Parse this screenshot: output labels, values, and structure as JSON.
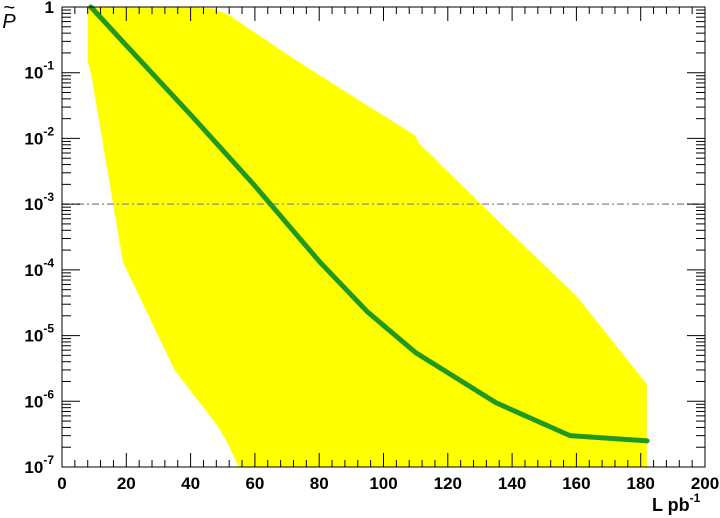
{
  "chart_data": {
    "type": "line",
    "xlabel": "L pb",
    "xlabel_superscript": "-1",
    "ylabel": "P",
    "ylabel_accent": "~",
    "xlim": [
      0,
      200
    ],
    "ylim": [
      1e-07,
      1
    ],
    "yscale": "log",
    "x_ticks": [
      0,
      20,
      40,
      60,
      80,
      100,
      120,
      140,
      160,
      180,
      200
    ],
    "x_tick_labels": [
      "0",
      "20",
      "40",
      "60",
      "80",
      "100",
      "120",
      "140",
      "160",
      "180",
      "200"
    ],
    "y_ticks": [
      {
        "value": 1,
        "base": "1",
        "exp": ""
      },
      {
        "value": 0.1,
        "base": "10",
        "exp": "-1"
      },
      {
        "value": 0.01,
        "base": "10",
        "exp": "-2"
      },
      {
        "value": 0.001,
        "base": "10",
        "exp": "-3"
      },
      {
        "value": 0.0001,
        "base": "10",
        "exp": "-4"
      },
      {
        "value": 1e-05,
        "base": "10",
        "exp": "-5"
      },
      {
        "value": 1e-06,
        "base": "10",
        "exp": "-6"
      },
      {
        "value": 1e-07,
        "base": "10",
        "exp": "-7"
      }
    ],
    "reference_line": {
      "y": 0.001,
      "style": "dash-dot",
      "color": "#9a9a9a"
    },
    "series": [
      {
        "color": "#1f9a1f",
        "x": [
          9,
          20,
          40,
          60,
          80,
          95,
          110,
          135,
          158,
          182
        ],
        "y": [
          1,
          0.26,
          0.023,
          0.0019,
          0.000135,
          2.3e-05,
          5.5e-06,
          9.5e-07,
          3e-07,
          2.5e-07
        ]
      }
    ],
    "band": {
      "color": "#ffff00",
      "upper": {
        "x": [
          8,
          25,
          40,
          47,
          52,
          70,
          90,
          110,
          111,
          135,
          160,
          182
        ],
        "y": [
          1,
          1,
          1,
          0.95,
          0.75,
          0.19,
          0.045,
          0.011,
          0.0085,
          0.0006,
          4e-05,
          1.8e-06
        ]
      },
      "lower": {
        "x": [
          8,
          9,
          19,
          35,
          48,
          51,
          55,
          182
        ],
        "y": [
          0.15,
          0.1,
          0.00013,
          3e-06,
          4.5e-07,
          2.6e-07,
          1e-07,
          1e-07
        ]
      }
    }
  }
}
